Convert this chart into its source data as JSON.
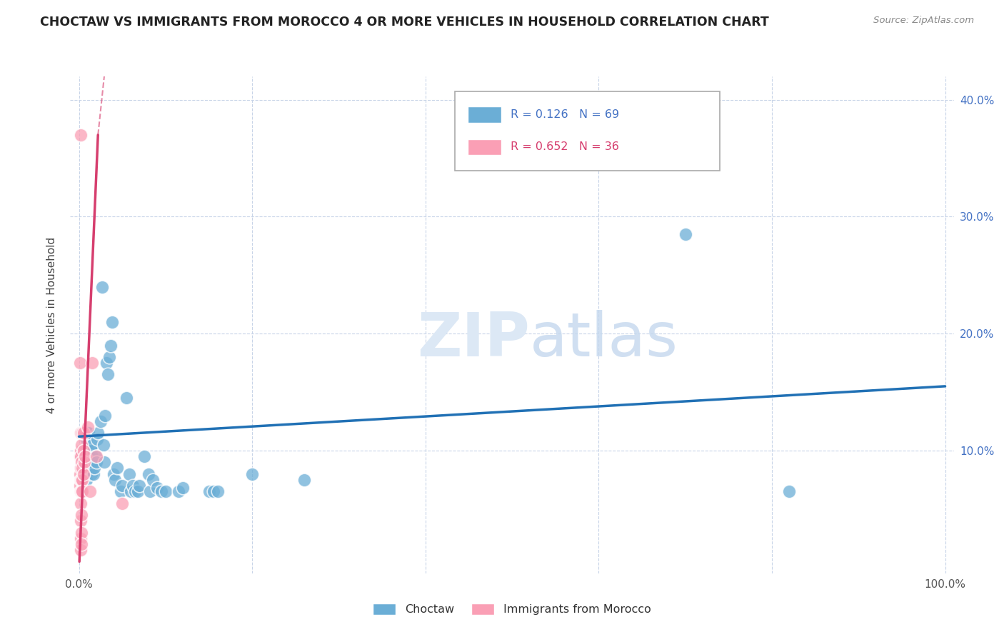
{
  "title": "CHOCTAW VS IMMIGRANTS FROM MOROCCO 4 OR MORE VEHICLES IN HOUSEHOLD CORRELATION CHART",
  "source": "Source: ZipAtlas.com",
  "ylabel": "4 or more Vehicles in Household",
  "xlim": [
    -1,
    101
  ],
  "ylim": [
    -0.5,
    42
  ],
  "legend_blue_r": "0.126",
  "legend_blue_n": "69",
  "legend_pink_r": "0.652",
  "legend_pink_n": "36",
  "blue_color": "#6baed6",
  "pink_color": "#fa9fb5",
  "blue_line_color": "#2171b5",
  "pink_line_color": "#d63e6e",
  "background_color": "#ffffff",
  "grid_color": "#c8d4e8",
  "blue_points": [
    [
      0.2,
      9.5
    ],
    [
      0.4,
      9.5
    ],
    [
      0.5,
      9.0
    ],
    [
      0.5,
      10.0
    ],
    [
      0.6,
      10.0
    ],
    [
      0.6,
      8.5
    ],
    [
      0.7,
      11.5
    ],
    [
      0.7,
      8.5
    ],
    [
      0.8,
      10.0
    ],
    [
      0.8,
      9.0
    ],
    [
      0.9,
      11.0
    ],
    [
      0.9,
      7.5
    ],
    [
      1.0,
      11.5
    ],
    [
      1.0,
      9.5
    ],
    [
      1.0,
      8.5
    ],
    [
      1.1,
      10.0
    ],
    [
      1.1,
      11.5
    ],
    [
      1.2,
      8.5
    ],
    [
      1.2,
      9.5
    ],
    [
      1.3,
      9.0
    ],
    [
      1.4,
      8.0
    ],
    [
      1.4,
      10.0
    ],
    [
      1.5,
      9.5
    ],
    [
      1.5,
      10.5
    ],
    [
      1.6,
      9.0
    ],
    [
      1.7,
      8.0
    ],
    [
      1.8,
      8.5
    ],
    [
      1.9,
      9.5
    ],
    [
      2.0,
      9.0
    ],
    [
      2.1,
      11.0
    ],
    [
      2.2,
      11.5
    ],
    [
      2.5,
      12.5
    ],
    [
      2.7,
      24.0
    ],
    [
      2.8,
      10.5
    ],
    [
      2.9,
      9.0
    ],
    [
      3.0,
      13.0
    ],
    [
      3.2,
      17.5
    ],
    [
      3.3,
      16.5
    ],
    [
      3.5,
      18.0
    ],
    [
      3.7,
      19.0
    ],
    [
      3.8,
      21.0
    ],
    [
      4.0,
      8.0
    ],
    [
      4.2,
      7.5
    ],
    [
      4.4,
      8.5
    ],
    [
      4.8,
      6.5
    ],
    [
      5.0,
      7.0
    ],
    [
      5.5,
      14.5
    ],
    [
      5.8,
      8.0
    ],
    [
      6.0,
      6.5
    ],
    [
      6.2,
      7.0
    ],
    [
      6.5,
      6.5
    ],
    [
      6.8,
      6.5
    ],
    [
      7.0,
      7.0
    ],
    [
      7.5,
      9.5
    ],
    [
      8.0,
      8.0
    ],
    [
      8.2,
      6.5
    ],
    [
      8.5,
      7.5
    ],
    [
      9.0,
      6.8
    ],
    [
      9.5,
      6.5
    ],
    [
      10.0,
      6.5
    ],
    [
      11.5,
      6.5
    ],
    [
      12.0,
      6.8
    ],
    [
      15.0,
      6.5
    ],
    [
      15.5,
      6.5
    ],
    [
      16.0,
      6.5
    ],
    [
      20.0,
      8.0
    ],
    [
      26.0,
      7.5
    ],
    [
      70.0,
      28.5
    ],
    [
      82.0,
      6.5
    ]
  ],
  "pink_points": [
    [
      0.1,
      17.5
    ],
    [
      0.1,
      9.5
    ],
    [
      0.1,
      8.0
    ],
    [
      0.1,
      7.0
    ],
    [
      0.2,
      37.0
    ],
    [
      0.2,
      11.5
    ],
    [
      0.2,
      10.0
    ],
    [
      0.2,
      9.5
    ],
    [
      0.2,
      8.5
    ],
    [
      0.2,
      7.5
    ],
    [
      0.2,
      6.5
    ],
    [
      0.2,
      5.5
    ],
    [
      0.2,
      4.0
    ],
    [
      0.2,
      2.5
    ],
    [
      0.2,
      1.5
    ],
    [
      0.3,
      10.5
    ],
    [
      0.3,
      9.0
    ],
    [
      0.3,
      7.5
    ],
    [
      0.3,
      6.5
    ],
    [
      0.3,
      4.5
    ],
    [
      0.3,
      3.0
    ],
    [
      0.3,
      2.0
    ],
    [
      0.4,
      11.5
    ],
    [
      0.4,
      8.5
    ],
    [
      0.4,
      7.5
    ],
    [
      0.4,
      6.5
    ],
    [
      0.5,
      11.5
    ],
    [
      0.5,
      10.0
    ],
    [
      0.5,
      8.0
    ],
    [
      0.6,
      9.0
    ],
    [
      0.7,
      9.5
    ],
    [
      1.0,
      12.0
    ],
    [
      1.3,
      6.5
    ],
    [
      1.5,
      17.5
    ],
    [
      2.0,
      9.5
    ],
    [
      5.0,
      5.5
    ]
  ],
  "blue_line": [
    [
      0,
      11.2
    ],
    [
      100,
      15.5
    ]
  ],
  "pink_line_solid": [
    [
      0.05,
      0.5
    ],
    [
      2.2,
      37.0
    ]
  ],
  "pink_line_dashed": [
    [
      2.2,
      37.0
    ],
    [
      5.5,
      60.0
    ]
  ]
}
